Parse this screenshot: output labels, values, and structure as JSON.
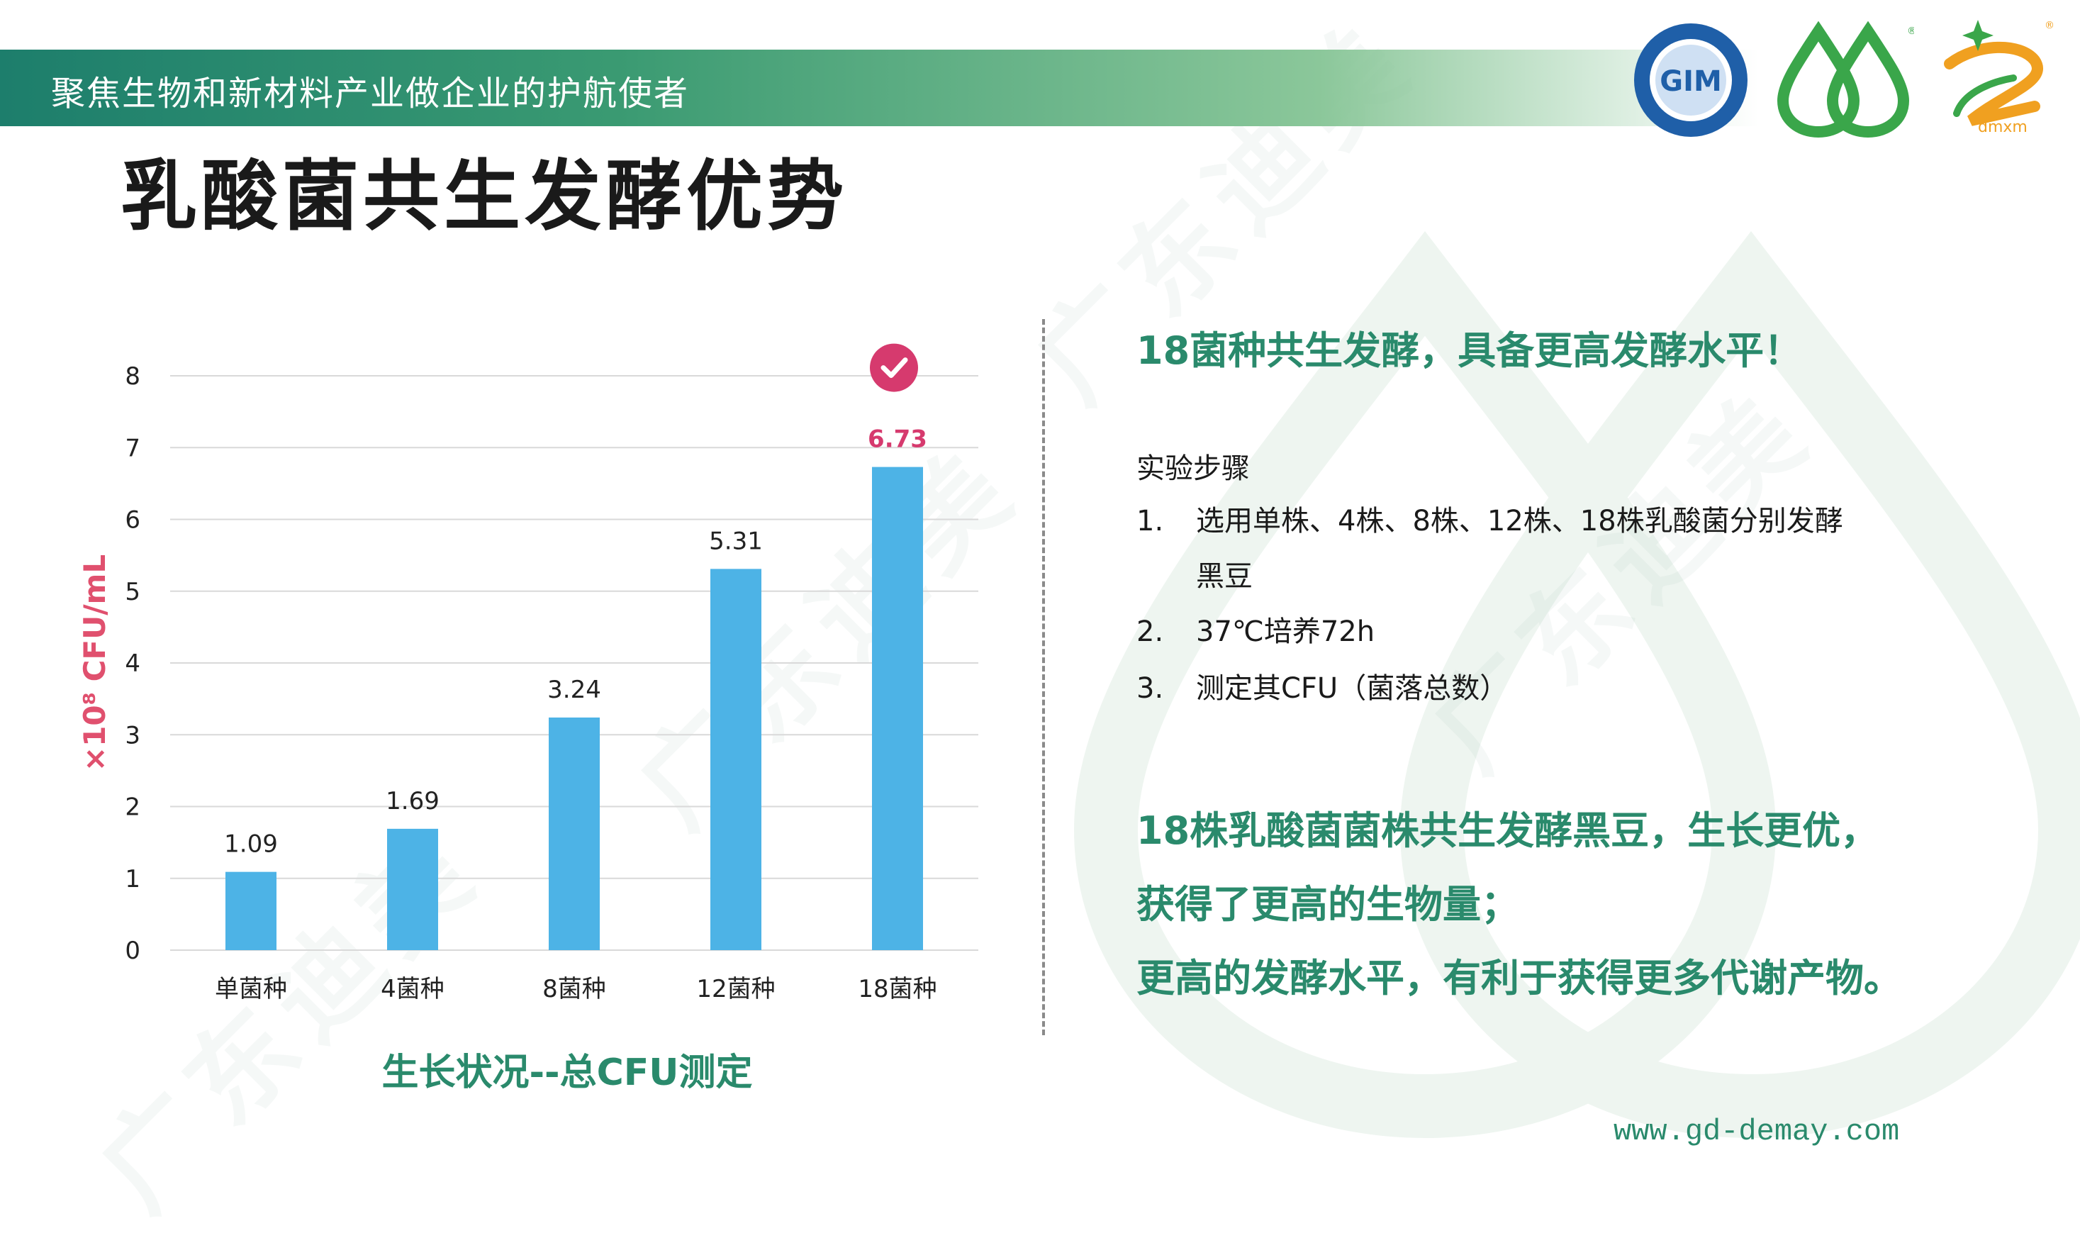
{
  "header": {
    "slogan": "聚焦生物和新材料产业做企业的护航使者",
    "watermark_text": "广东迪美"
  },
  "page_title": "乳酸菌共生发酵优势",
  "logos": [
    {
      "name": "institute-seal",
      "color": "#1f5fa8"
    },
    {
      "name": "green-drops",
      "color": "#3aa64a"
    },
    {
      "name": "dmxm",
      "text": "dmxm",
      "color": "#f0a020"
    }
  ],
  "chart_data": {
    "type": "bar",
    "categories": [
      "单菌种",
      "4菌种",
      "8菌种",
      "12菌种",
      "18菌种"
    ],
    "values": [
      1.09,
      1.69,
      3.24,
      5.31,
      6.73
    ],
    "data_labels": [
      "1.09",
      "1.69",
      "3.24",
      "5.31",
      "6.73"
    ],
    "highlight_index": 4,
    "y_ticks": [
      "0",
      "1",
      "2",
      "3",
      "4",
      "5",
      "6",
      "7",
      "8"
    ],
    "ylim": [
      0,
      8
    ],
    "ylabel": "×10⁸ CFU/mL",
    "caption": "生长状况--总CFU测定",
    "grid": true,
    "colors": {
      "bar": "#4db3e6",
      "highlight": "#d63a6e",
      "ylabel": "#e0506e",
      "grid": "#d9d9d9"
    }
  },
  "panel": {
    "heading": "18菌种共生发酵，具备更高发酵水平！",
    "steps_title": "实验步骤",
    "steps": [
      {
        "num": "1.",
        "line1": "选用单株、4株、8株、12株、18株乳酸菌分别发酵",
        "line2": "黑豆"
      },
      {
        "num": "2.",
        "line1": "37℃培养72h"
      },
      {
        "num": "3.",
        "line1": "测定其CFU（菌落总数）"
      }
    ],
    "conclusion": [
      "18株乳酸菌菌株共生发酵黑豆，生长更优，",
      "获得了更高的生物量；",
      "更高的发酵水平，有利于获得更多代谢产物。"
    ]
  },
  "footer": {
    "website": "www.gd-demay.com"
  },
  "colors": {
    "accent_green": "#2a8a6c",
    "banner_dark": "#1d7e6c",
    "banner_light": "#8bc79a"
  }
}
